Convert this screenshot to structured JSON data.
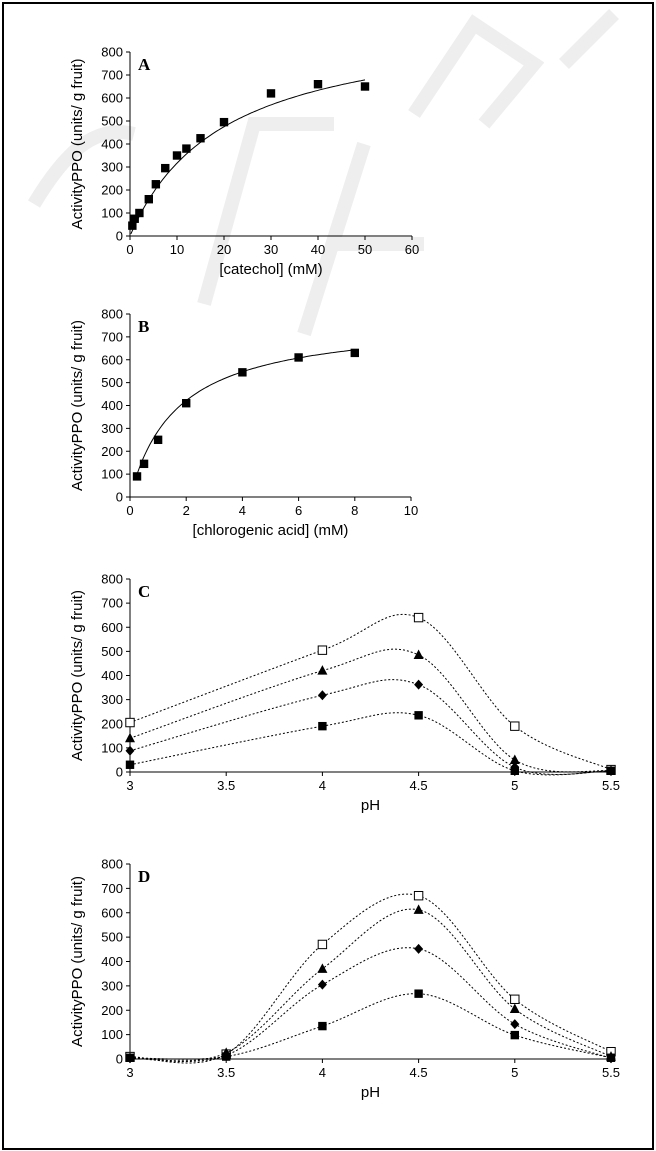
{
  "chart_data": [
    {
      "type": "scatter",
      "panel": "A",
      "xlabel": "[catechol] (mM)",
      "ylabel": "ActivityPPO (units/ g fruit)",
      "xlim": [
        0,
        60
      ],
      "ylim": [
        0,
        800
      ],
      "xticks": [
        0,
        10,
        20,
        30,
        40,
        50,
        60
      ],
      "yticks": [
        0,
        100,
        200,
        300,
        400,
        500,
        600,
        700,
        800
      ],
      "series": [
        {
          "marker": "square-filled",
          "x": [
            0.5,
            1,
            2,
            4,
            5.5,
            7.5,
            10,
            12,
            15,
            20,
            30,
            40,
            50
          ],
          "y": [
            45,
            75,
            100,
            160,
            225,
            295,
            350,
            380,
            425,
            495,
            620,
            660,
            650
          ]
        }
      ],
      "fit": {
        "style": "solid",
        "vmax": 950,
        "km": 20
      }
    },
    {
      "type": "scatter",
      "panel": "B",
      "xlabel": "[chlorogenic acid] (mM)",
      "ylabel": "ActivityPPO (units/ g fruit)",
      "xlim": [
        0,
        10
      ],
      "ylim": [
        0,
        800
      ],
      "xticks": [
        0,
        2,
        4,
        6,
        8,
        10
      ],
      "yticks": [
        0,
        100,
        200,
        300,
        400,
        500,
        600,
        700,
        800
      ],
      "series": [
        {
          "marker": "square-filled",
          "x": [
            0.25,
            0.5,
            1,
            2,
            4,
            6,
            8
          ],
          "y": [
            90,
            145,
            250,
            410,
            545,
            610,
            630
          ]
        }
      ],
      "fit": {
        "style": "solid",
        "vmax": 780,
        "km": 1.7
      }
    },
    {
      "type": "line",
      "panel": "C",
      "xlabel": "pH",
      "ylabel": "ActivityPPO (units/ g fruit)",
      "xlim": [
        3,
        5.5
      ],
      "ylim": [
        0,
        800
      ],
      "xticks": [
        3,
        3.5,
        4,
        4.5,
        5,
        5.5
      ],
      "yticks": [
        0,
        100,
        200,
        300,
        400,
        500,
        600,
        700,
        800
      ],
      "x": [
        3,
        4,
        4.5,
        5,
        5.5
      ],
      "series": [
        {
          "marker": "square-open",
          "values": [
            205,
            505,
            640,
            190,
            10
          ]
        },
        {
          "marker": "triangle-filled",
          "values": [
            140,
            420,
            485,
            50,
            5
          ]
        },
        {
          "marker": "diamond-filled",
          "values": [
            88,
            318,
            362,
            20,
            5
          ]
        },
        {
          "marker": "square-filled",
          "values": [
            30,
            190,
            235,
            5,
            5
          ]
        }
      ]
    },
    {
      "type": "line",
      "panel": "D",
      "xlabel": "pH",
      "ylabel": "ActivityPPO (units/ g fruit)",
      "xlim": [
        3,
        5.5
      ],
      "ylim": [
        0,
        800
      ],
      "xticks": [
        3,
        3.5,
        4,
        4.5,
        5,
        5.5
      ],
      "yticks": [
        0,
        100,
        200,
        300,
        400,
        500,
        600,
        700,
        800
      ],
      "x": [
        3,
        3.5,
        4,
        4.5,
        5,
        5.5
      ],
      "series": [
        {
          "marker": "square-open",
          "values": [
            10,
            20,
            470,
            670,
            245,
            30
          ]
        },
        {
          "marker": "triangle-filled",
          "values": [
            5,
            25,
            370,
            612,
            205,
            10
          ]
        },
        {
          "marker": "diamond-filled",
          "values": [
            3,
            15,
            305,
            452,
            143,
            3
          ]
        },
        {
          "marker": "square-filled",
          "values": [
            5,
            10,
            135,
            268,
            98,
            5
          ]
        }
      ]
    }
  ]
}
